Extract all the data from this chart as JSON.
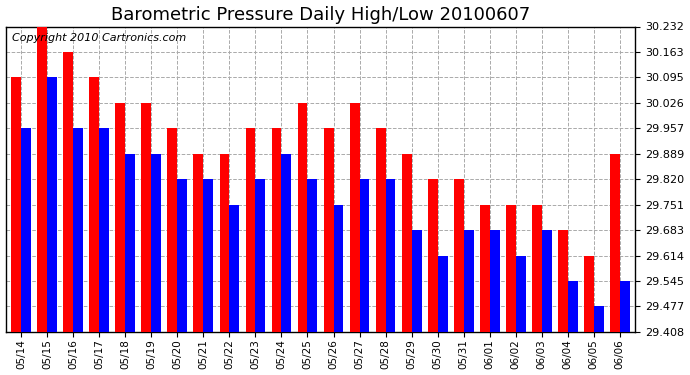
{
  "title": "Barometric Pressure Daily High/Low 20100607",
  "copyright": "Copyright 2010 Cartronics.com",
  "dates": [
    "05/14",
    "05/15",
    "05/16",
    "05/17",
    "05/18",
    "05/19",
    "05/20",
    "05/21",
    "05/22",
    "05/23",
    "05/24",
    "05/25",
    "05/26",
    "05/27",
    "05/28",
    "05/29",
    "05/30",
    "05/31",
    "06/01",
    "06/02",
    "06/03",
    "06/04",
    "06/05",
    "06/06"
  ],
  "highs": [
    30.095,
    30.232,
    30.163,
    30.095,
    30.026,
    30.026,
    29.957,
    29.889,
    29.889,
    29.957,
    29.957,
    30.026,
    29.957,
    30.026,
    29.957,
    29.889,
    29.82,
    29.82,
    29.751,
    29.751,
    29.751,
    29.683,
    29.614,
    29.889
  ],
  "lows": [
    29.957,
    30.095,
    29.957,
    29.957,
    29.889,
    29.889,
    29.82,
    29.82,
    29.751,
    29.82,
    29.889,
    29.82,
    29.751,
    29.82,
    29.82,
    29.683,
    29.614,
    29.683,
    29.683,
    29.614,
    29.683,
    29.545,
    29.477,
    29.545
  ],
  "high_color": "#ff0000",
  "low_color": "#0000ff",
  "background_color": "#ffffff",
  "grid_color": "#aaaaaa",
  "y_min": 29.408,
  "y_max": 30.232,
  "y_ticks": [
    29.408,
    29.477,
    29.545,
    29.614,
    29.683,
    29.751,
    29.82,
    29.889,
    29.957,
    30.026,
    30.095,
    30.163,
    30.232
  ],
  "title_fontsize": 13,
  "copyright_fontsize": 8,
  "bar_width": 0.38
}
